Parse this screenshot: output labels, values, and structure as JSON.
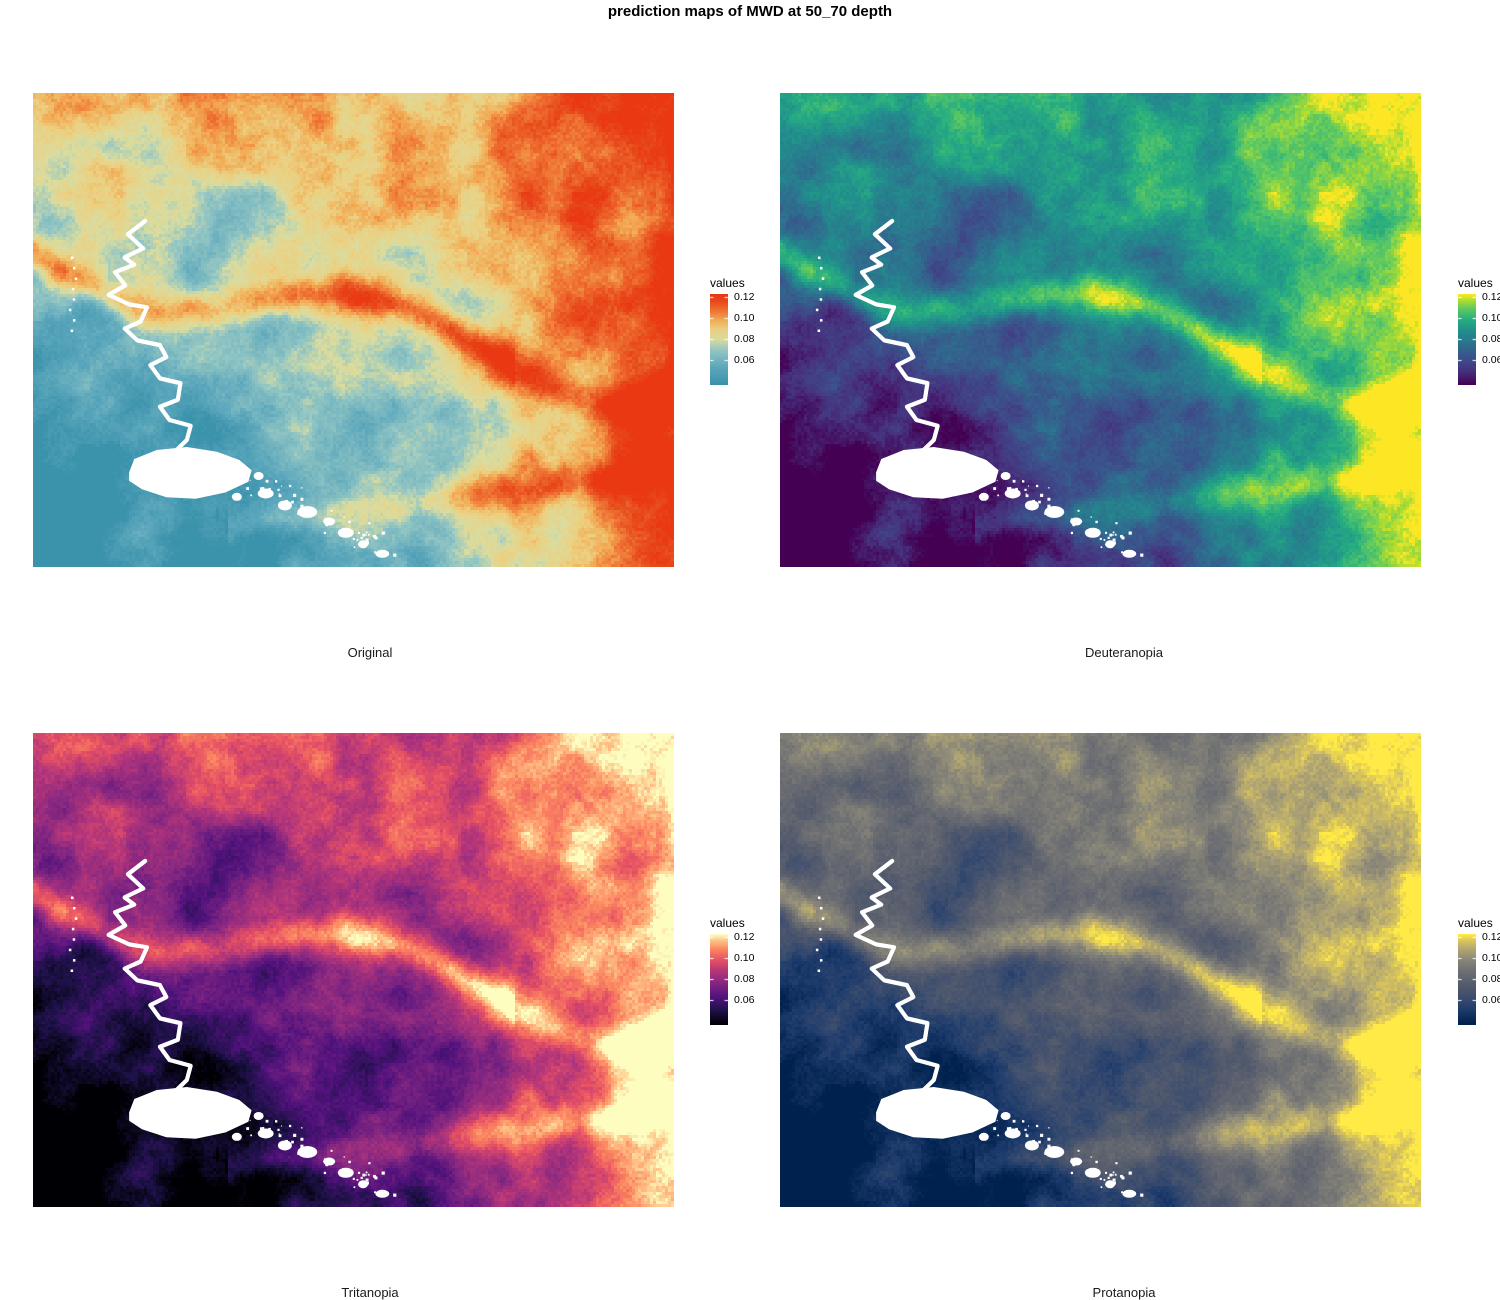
{
  "title": "prediction maps of MWD at 50_70 depth",
  "legend": {
    "title": "values",
    "ticks": [
      "0.12",
      "0.10",
      "0.08",
      "0.06"
    ]
  },
  "panels": [
    {
      "label": "Original",
      "palette": [
        [
          0,
          "#3a92ab"
        ],
        [
          0.2,
          "#5fa9bd"
        ],
        [
          0.38,
          "#93c6c3"
        ],
        [
          0.5,
          "#dadc9f"
        ],
        [
          0.62,
          "#eccf7f"
        ],
        [
          0.72,
          "#f2a953"
        ],
        [
          0.82,
          "#ef7334"
        ],
        [
          0.92,
          "#e84b1c"
        ],
        [
          1,
          "#e93812"
        ]
      ]
    },
    {
      "label": "Deuteranopia",
      "palette": [
        [
          0,
          "#440154"
        ],
        [
          0.15,
          "#46327e"
        ],
        [
          0.3,
          "#3b528b"
        ],
        [
          0.45,
          "#2c728e"
        ],
        [
          0.6,
          "#21918c"
        ],
        [
          0.72,
          "#27ad81"
        ],
        [
          0.84,
          "#5ec962"
        ],
        [
          0.93,
          "#aadc32"
        ],
        [
          1,
          "#fde725"
        ]
      ]
    },
    {
      "label": "Tritanopia",
      "palette": [
        [
          0,
          "#000004"
        ],
        [
          0.15,
          "#1d1147"
        ],
        [
          0.3,
          "#51127c"
        ],
        [
          0.45,
          "#822681"
        ],
        [
          0.6,
          "#b73779"
        ],
        [
          0.72,
          "#e75263"
        ],
        [
          0.84,
          "#fc8961"
        ],
        [
          0.93,
          "#fec287"
        ],
        [
          1,
          "#fcfdbf"
        ]
      ]
    },
    {
      "label": "Protanopia",
      "palette": [
        [
          0,
          "#00204d"
        ],
        [
          0.15,
          "#1b3a6b"
        ],
        [
          0.3,
          "#3c4d6e"
        ],
        [
          0.45,
          "#575d6d"
        ],
        [
          0.6,
          "#707173"
        ],
        [
          0.72,
          "#8a8779"
        ],
        [
          0.84,
          "#b3a772"
        ],
        [
          0.93,
          "#d9c55c"
        ],
        [
          1,
          "#ffea46"
        ]
      ]
    }
  ],
  "render": {
    "na_color": "#ffffff",
    "background": "#ffffff"
  },
  "chart_data": {
    "type": "heatmap",
    "title": "prediction maps of MWD at 50_70 depth",
    "panels": [
      "Original",
      "Deuteranopia",
      "Tritanopia",
      "Protanopia"
    ],
    "legend_title": "values",
    "legend_ticks": [
      0.12,
      0.1,
      0.08,
      0.06
    ],
    "legend_position": "right",
    "grid": "off",
    "value_range_shown": [
      0.06,
      0.12
    ]
  }
}
